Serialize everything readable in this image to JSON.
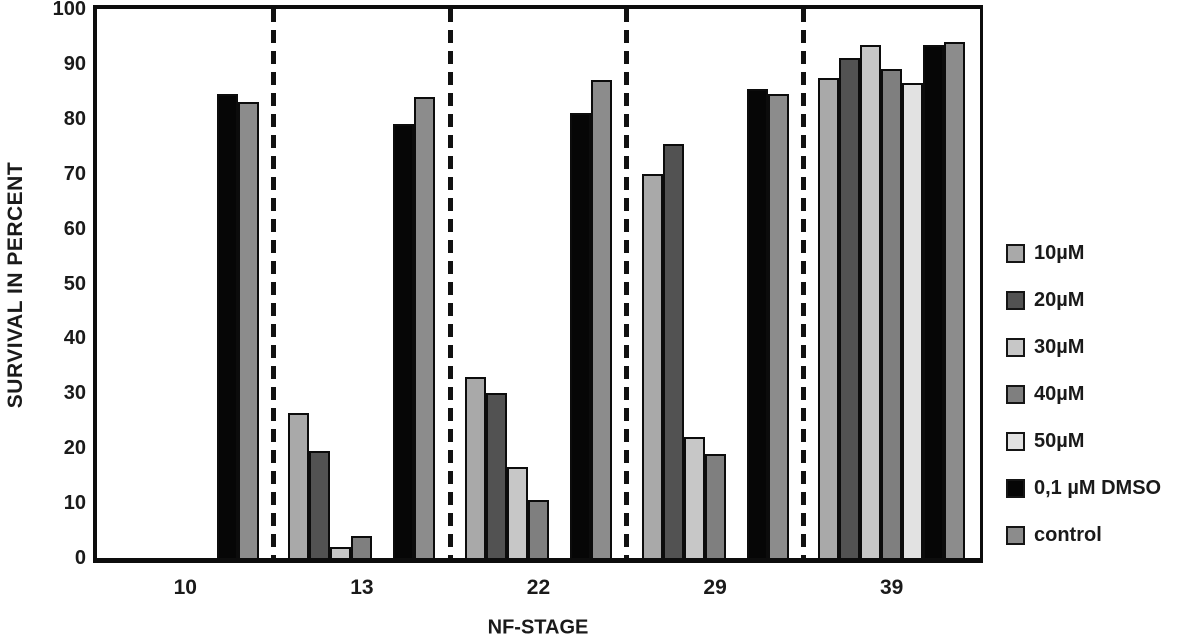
{
  "chart_data": {
    "type": "bar",
    "title": "",
    "xlabel": "NF-STAGE",
    "ylabel": "SURVIVAL IN PERCENT",
    "ylim": [
      0,
      100
    ],
    "yticks": [
      0,
      10,
      20,
      30,
      40,
      50,
      60,
      70,
      80,
      90,
      100
    ],
    "categories": [
      "10",
      "13",
      "22",
      "29",
      "39"
    ],
    "series": [
      {
        "name": "10µM",
        "color": "#a9a9a9",
        "values": [
          0,
          26.5,
          33,
          70,
          87.5
        ]
      },
      {
        "name": "20µM",
        "color": "#525252",
        "values": [
          0,
          19.5,
          30,
          75.5,
          91
        ]
      },
      {
        "name": "30µM",
        "color": "#c7c7c7",
        "values": [
          0,
          2,
          16.5,
          22,
          93.5
        ]
      },
      {
        "name": "40µM",
        "color": "#7f7f7f",
        "values": [
          0,
          4,
          10.5,
          19,
          89
        ]
      },
      {
        "name": "50µM",
        "color": "#e2e2e2",
        "values": [
          0,
          0,
          0,
          0,
          86.5
        ]
      },
      {
        "name": "0,1 µM DMSO",
        "color": "#060606",
        "values": [
          84.5,
          79,
          81,
          85.5,
          93.5
        ]
      },
      {
        "name": "control",
        "color": "#8c8c8c",
        "values": [
          83,
          84,
          87,
          84.5,
          94
        ]
      }
    ],
    "legend_position": "right",
    "grid": false,
    "group_separators": "dashed",
    "bar_outline_color": "#0c0c0c",
    "axis_color": "#0d0d0d",
    "background_color": "#ffffff"
  }
}
